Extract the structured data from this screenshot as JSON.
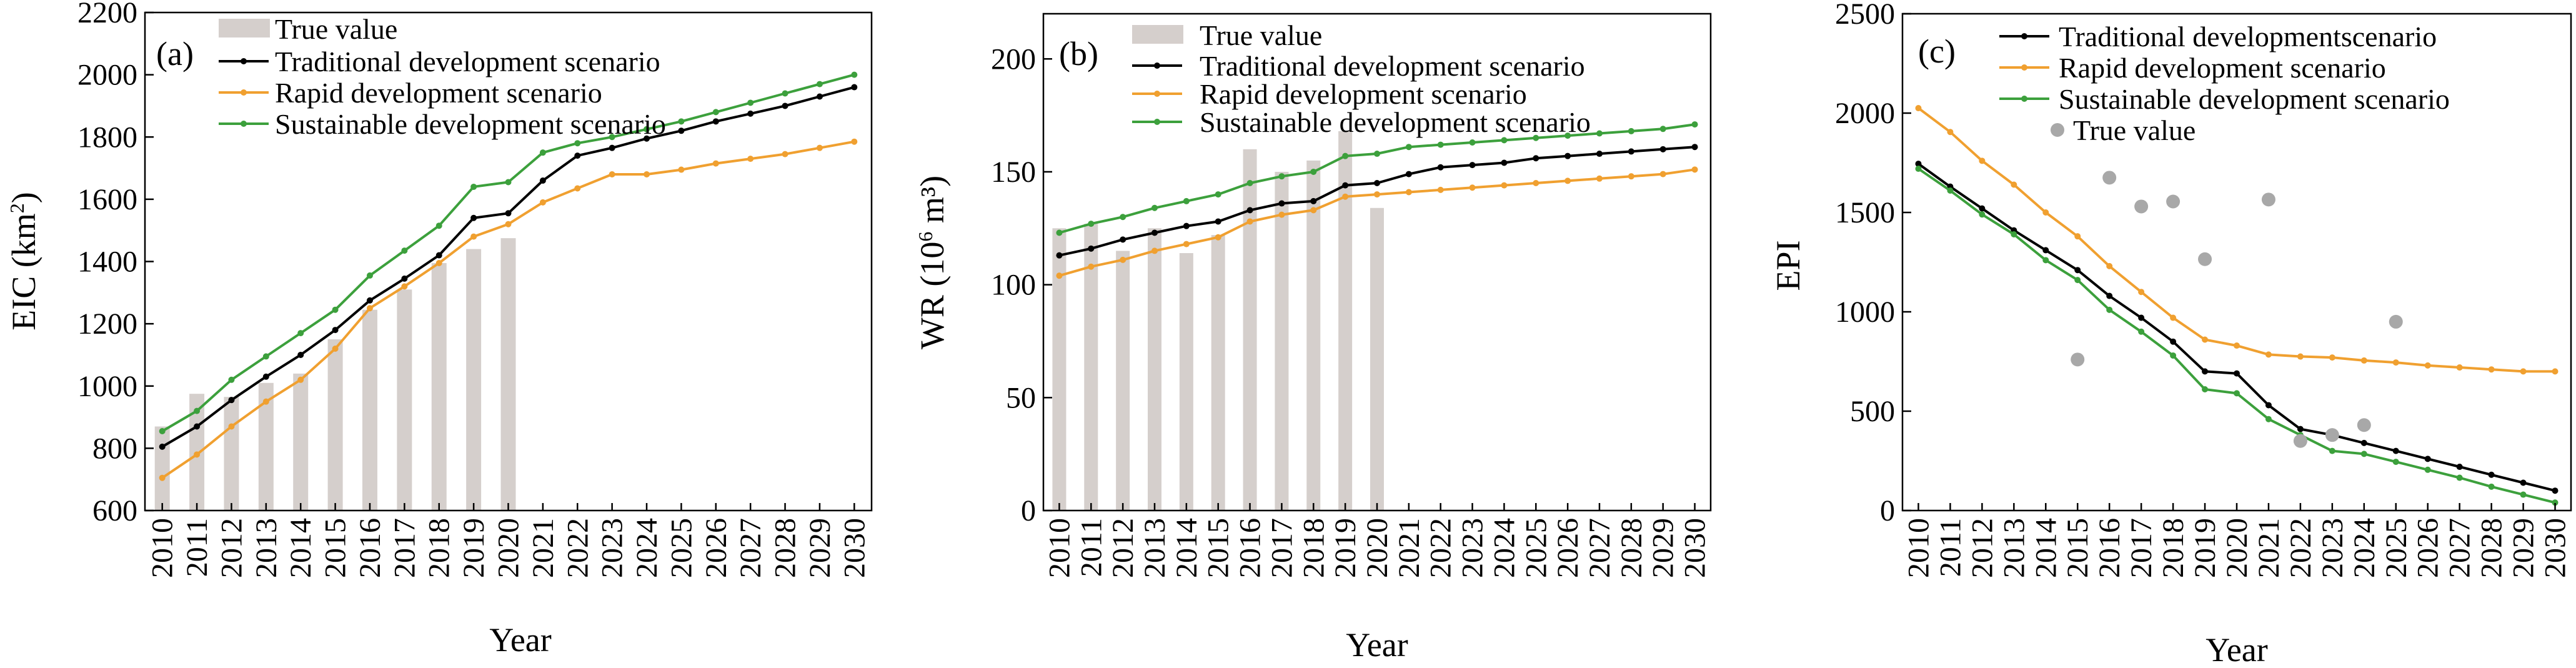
{
  "chart_data": [
    {
      "type": "bar+line",
      "panel_label": "(a)",
      "ylabel_base": "EIC (km",
      "ylabel_sup": "2",
      "ylabel_end": ")",
      "xlabel": "Year",
      "ylim": [
        600,
        2200
      ],
      "yticks": [
        600,
        800,
        1000,
        1200,
        1400,
        1600,
        1800,
        2000,
        2200
      ],
      "categories": [
        "2010",
        "2011",
        "2012",
        "2013",
        "2014",
        "2015",
        "2016",
        "2017",
        "2018",
        "2019",
        "2020",
        "2021",
        "2022",
        "2023",
        "2024",
        "2025",
        "2026",
        "2027",
        "2028",
        "2029",
        "2030"
      ],
      "bar_values": [
        870,
        975,
        965,
        1010,
        1040,
        1150,
        1245,
        1310,
        1395,
        1440,
        1475
      ],
      "series": [
        {
          "name": "Traditional development scenario",
          "color": "#000000",
          "values": [
            805,
            870,
            955,
            1030,
            1100,
            1180,
            1275,
            1345,
            1420,
            1540,
            1555,
            1660,
            1740,
            1765,
            1795,
            1820,
            1850,
            1875,
            1900,
            1930,
            1960
          ]
        },
        {
          "name": "Rapid development scenario",
          "color": "#F0A030",
          "values": [
            705,
            780,
            870,
            950,
            1020,
            1120,
            1250,
            1320,
            1395,
            1480,
            1520,
            1590,
            1635,
            1680,
            1680,
            1695,
            1715,
            1730,
            1745,
            1765,
            1785
          ]
        },
        {
          "name": "Sustainable development scenario",
          "color": "#3CA03C",
          "values": [
            855,
            920,
            1020,
            1095,
            1170,
            1245,
            1355,
            1435,
            1515,
            1640,
            1655,
            1750,
            1780,
            1800,
            1825,
            1850,
            1880,
            1910,
            1940,
            1970,
            2000
          ]
        }
      ],
      "legend": {
        "bar_label": "True value",
        "position": "top-left"
      }
    },
    {
      "type": "bar+line",
      "panel_label": "(b)",
      "ylabel_base": "WR (10",
      "ylabel_sup": "6",
      "ylabel_end": " m³)",
      "xlabel": "Year",
      "ylim": [
        0,
        220
      ],
      "yticks": [
        0,
        50,
        100,
        150,
        200
      ],
      "categories": [
        "2010",
        "2011",
        "2012",
        "2013",
        "2014",
        "2015",
        "2016",
        "2017",
        "2018",
        "2019",
        "2020",
        "2021",
        "2022",
        "2023",
        "2024",
        "2025",
        "2026",
        "2027",
        "2028",
        "2029",
        "2030"
      ],
      "bar_values": [
        125,
        127,
        115,
        125,
        114,
        122,
        160,
        150,
        155,
        168,
        134
      ],
      "series": [
        {
          "name": "Traditional development scenario",
          "color": "#000000",
          "values": [
            113,
            116,
            120,
            123,
            126,
            128,
            133,
            136,
            137,
            144,
            145,
            149,
            152,
            153,
            154,
            156,
            157,
            158,
            159,
            160,
            161
          ]
        },
        {
          "name": "Rapid development scenario",
          "color": "#F0A030",
          "values": [
            104,
            108,
            111,
            115,
            118,
            121,
            128,
            131,
            133,
            139,
            140,
            141,
            142,
            143,
            144,
            145,
            146,
            147,
            148,
            149,
            151
          ]
        },
        {
          "name": "Sustainable development scenario",
          "color": "#3CA03C",
          "values": [
            123,
            127,
            130,
            134,
            137,
            140,
            145,
            148,
            150,
            157,
            158,
            161,
            162,
            163,
            164,
            165,
            166,
            167,
            168,
            169,
            171
          ]
        }
      ],
      "legend": {
        "bar_label": "True value",
        "position": "top-left"
      }
    },
    {
      "type": "line+scatter",
      "panel_label": "(c)",
      "ylabel": "EPI",
      "xlabel": "Year",
      "ylim": [
        0,
        2500
      ],
      "yticks": [
        0,
        500,
        1000,
        1500,
        2000,
        2500
      ],
      "categories": [
        "2010",
        "2011",
        "2012",
        "2013",
        "2014",
        "2015",
        "2016",
        "2017",
        "2018",
        "2019",
        "2020",
        "2021",
        "2022",
        "2023",
        "2024",
        "2025",
        "2026",
        "2027",
        "2028",
        "2029",
        "2030"
      ],
      "series": [
        {
          "name": "Traditional developmentscenario",
          "color": "#000000",
          "values": [
            1745,
            1630,
            1520,
            1410,
            1310,
            1210,
            1080,
            970,
            850,
            700,
            690,
            530,
            410,
            380,
            340,
            300,
            260,
            220,
            180,
            140,
            100
          ]
        },
        {
          "name": "Rapid development scenario",
          "color": "#F0A030",
          "values": [
            2025,
            1905,
            1760,
            1640,
            1500,
            1380,
            1230,
            1100,
            970,
            860,
            830,
            785,
            775,
            770,
            755,
            745,
            730,
            720,
            710,
            700,
            700
          ]
        },
        {
          "name": "Sustainable development scenario",
          "color": "#3CA03C",
          "values": [
            1720,
            1610,
            1490,
            1390,
            1260,
            1160,
            1010,
            900,
            780,
            610,
            590,
            460,
            380,
            300,
            285,
            245,
            205,
            165,
            120,
            80,
            40
          ]
        }
      ],
      "scatter": {
        "name": "True value",
        "color": "#A8A8A8",
        "points": [
          {
            "x": "2015",
            "y": 760
          },
          {
            "x": "2016",
            "y": 1675
          },
          {
            "x": "2017",
            "y": 1530
          },
          {
            "x": "2018",
            "y": 1555
          },
          {
            "x": "2019",
            "y": 1265
          },
          {
            "x": "2021",
            "y": 1565
          },
          {
            "x": "2022",
            "y": 350
          },
          {
            "x": "2023",
            "y": 380
          },
          {
            "x": "2024",
            "y": 430
          },
          {
            "x": "2025",
            "y": 950
          }
        ]
      },
      "legend": {
        "position": "top-right"
      }
    }
  ]
}
